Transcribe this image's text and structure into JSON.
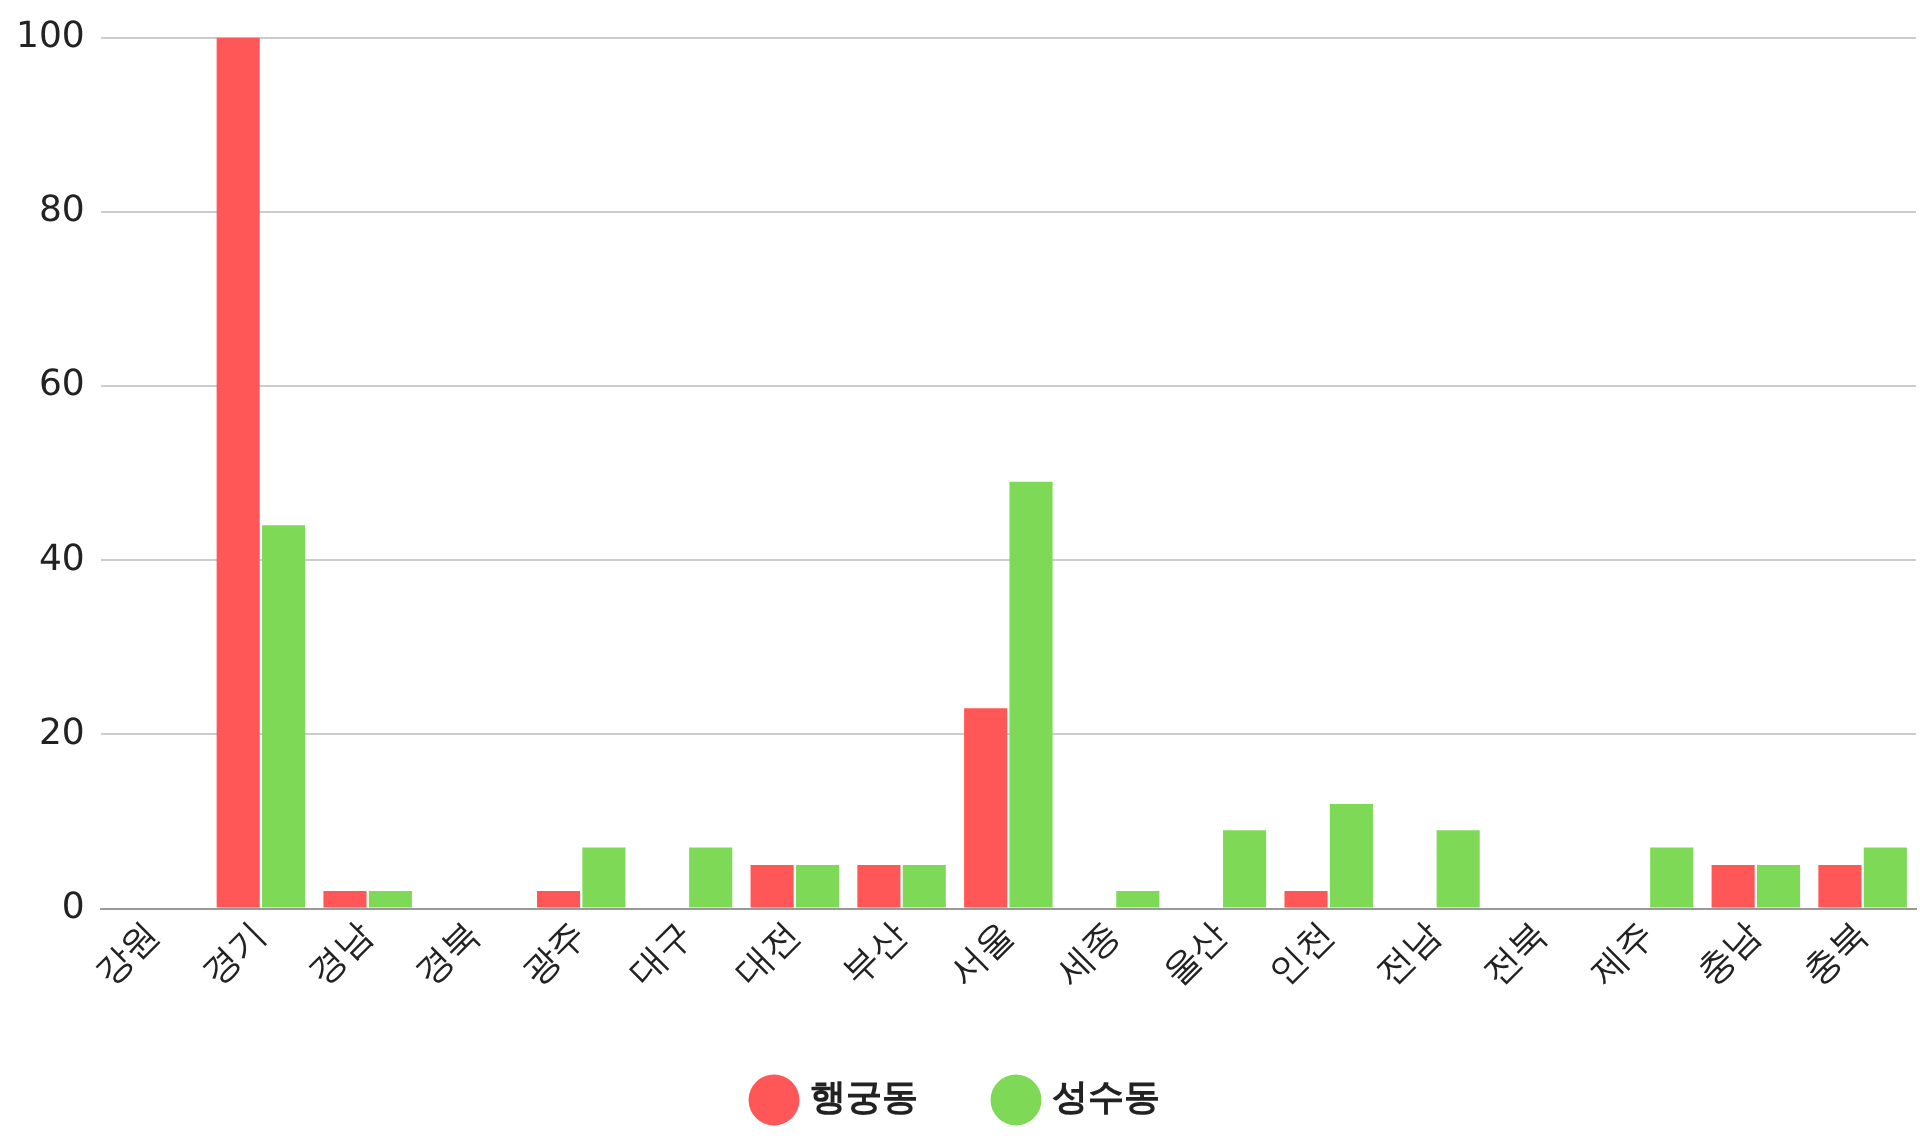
{
  "chart_data": {
    "type": "bar",
    "categories": [
      "강원",
      "경기",
      "경남",
      "경북",
      "광주",
      "대구",
      "대전",
      "부산",
      "서울",
      "세종",
      "울산",
      "인천",
      "전남",
      "전북",
      "제주",
      "충남",
      "충북"
    ],
    "series": [
      {
        "name": "행궁동",
        "color": "#ff5757",
        "values": [
          0,
          100,
          2,
          0,
          2,
          0,
          5,
          5,
          23,
          0,
          0,
          2,
          0,
          0,
          0,
          5,
          5
        ]
      },
      {
        "name": "성수동",
        "color": "#7ed957",
        "values": [
          0,
          44,
          2,
          0,
          7,
          7,
          5,
          5,
          49,
          2,
          9,
          12,
          9,
          0,
          7,
          5,
          7
        ]
      }
    ],
    "ylim": [
      0,
      100
    ],
    "yticks": [
      0,
      20,
      40,
      60,
      80,
      100
    ],
    "grid": "y",
    "legend": "bottom",
    "marker": "circle"
  }
}
